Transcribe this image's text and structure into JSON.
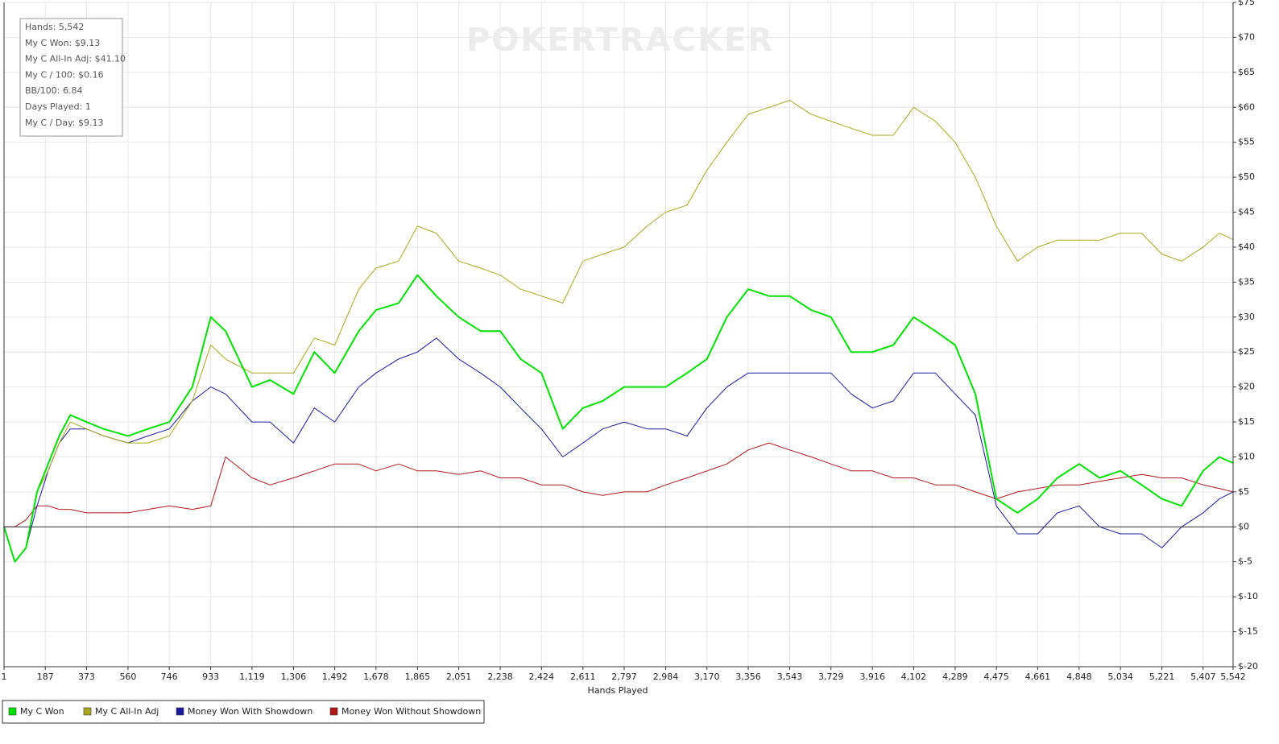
{
  "chart_data": {
    "type": "line",
    "watermark": "POKERTRACKER",
    "stats": [
      "Hands: 5,542",
      "My C Won: $9.13",
      "My C All-In Adj: $41.10",
      "My C / 100: $0.16",
      "BB/100: 6.84",
      "Days Played: 1",
      "My C / Day: $9.13"
    ],
    "x_label": "Hands Played",
    "x": [
      1,
      50,
      100,
      150,
      200,
      250,
      300,
      373,
      450,
      560,
      650,
      746,
      850,
      933,
      1000,
      1119,
      1200,
      1306,
      1400,
      1492,
      1600,
      1678,
      1780,
      1865,
      1950,
      2051,
      2150,
      2238,
      2330,
      2424,
      2520,
      2611,
      2700,
      2797,
      2900,
      2984,
      3080,
      3170,
      3260,
      3356,
      3450,
      3543,
      3640,
      3729,
      3820,
      3916,
      4010,
      4102,
      4200,
      4289,
      4380,
      4475,
      4570,
      4661,
      4750,
      4848,
      4940,
      5034,
      5130,
      5221,
      5310,
      5407,
      5480,
      5542
    ],
    "series": [
      {
        "name": "My C Won",
        "color": "#00e000",
        "width": 2,
        "values": [
          0,
          -5,
          -3,
          5,
          9,
          13,
          16,
          15,
          14,
          13,
          14,
          15,
          20,
          30,
          28,
          20,
          21,
          19,
          25,
          22,
          28,
          31,
          32,
          36,
          33,
          30,
          28,
          28,
          24,
          22,
          14,
          17,
          18,
          20,
          20,
          20,
          22,
          24,
          30,
          34,
          33,
          33,
          31,
          30,
          25,
          25,
          26,
          30,
          28,
          26,
          19,
          4,
          2,
          4,
          7,
          9,
          7,
          8,
          6,
          4,
          3,
          8,
          10,
          9.13
        ]
      },
      {
        "name": "My C All-In Adj",
        "color": "#a8a820",
        "width": 1,
        "values": [
          0,
          -5,
          -3,
          5,
          8,
          12,
          15,
          14,
          13,
          12,
          12,
          13,
          18,
          26,
          24,
          22,
          22,
          22,
          27,
          26,
          34,
          37,
          38,
          43,
          42,
          38,
          37,
          36,
          34,
          33,
          32,
          38,
          39,
          40,
          43,
          45,
          46,
          51,
          55,
          59,
          60,
          61,
          59,
          58,
          57,
          56,
          56,
          60,
          58,
          55,
          50,
          43,
          38,
          40,
          41,
          41,
          41,
          42,
          42,
          39,
          38,
          40,
          42,
          41.1
        ]
      },
      {
        "name": "Money Won With Showdown",
        "color": "#1a1aa0",
        "width": 1,
        "values": [
          0,
          -5,
          -3,
          3,
          8,
          12,
          14,
          14,
          13,
          12,
          13,
          14,
          18,
          20,
          19,
          15,
          15,
          12,
          17,
          15,
          20,
          22,
          24,
          25,
          27,
          24,
          22,
          20,
          17,
          14,
          10,
          12,
          14,
          15,
          14,
          14,
          13,
          17,
          20,
          22,
          22,
          22,
          22,
          22,
          19,
          17,
          18,
          22,
          22,
          19,
          16,
          3,
          -1,
          -1,
          2,
          3,
          0,
          -1,
          -1,
          -3,
          0,
          2,
          4,
          5
        ]
      },
      {
        "name": "Money Won Without Showdown",
        "color": "#b01818",
        "width": 1,
        "values": [
          0,
          0,
          1,
          3,
          3,
          2.5,
          2.5,
          2,
          2,
          2,
          2.5,
          3,
          2.5,
          3,
          10,
          7,
          6,
          7,
          8,
          9,
          9,
          8,
          9,
          8,
          8,
          7.5,
          8,
          7,
          7,
          6,
          6,
          5,
          4.5,
          5,
          5,
          6,
          7,
          8,
          9,
          11,
          12,
          11,
          10,
          9,
          8,
          8,
          7,
          7,
          6,
          6,
          5,
          4,
          5,
          5.5,
          6,
          6,
          6.5,
          7,
          7.5,
          7,
          7,
          6,
          5.5,
          5
        ]
      }
    ],
    "xlim": [
      1,
      5542
    ],
    "xticks": [
      {
        "value": 1,
        "label": "1"
      },
      {
        "value": 187,
        "label": "187"
      },
      {
        "value": 373,
        "label": "373"
      },
      {
        "value": 560,
        "label": "560"
      },
      {
        "value": 746,
        "label": "746"
      },
      {
        "value": 933,
        "label": "933"
      },
      {
        "value": 1119,
        "label": "1,119"
      },
      {
        "value": 1306,
        "label": "1,306"
      },
      {
        "value": 1492,
        "label": "1,492"
      },
      {
        "value": 1678,
        "label": "1,678"
      },
      {
        "value": 1865,
        "label": "1,865"
      },
      {
        "value": 2051,
        "label": "2,051"
      },
      {
        "value": 2238,
        "label": "2,238"
      },
      {
        "value": 2424,
        "label": "2,424"
      },
      {
        "value": 2611,
        "label": "2,611"
      },
      {
        "value": 2797,
        "label": "2,797"
      },
      {
        "value": 2984,
        "label": "2,984"
      },
      {
        "value": 3170,
        "label": "3,170"
      },
      {
        "value": 3356,
        "label": "3,356"
      },
      {
        "value": 3543,
        "label": "3,543"
      },
      {
        "value": 3729,
        "label": "3,729"
      },
      {
        "value": 3916,
        "label": "3,916"
      },
      {
        "value": 4102,
        "label": "4,102"
      },
      {
        "value": 4289,
        "label": "4,289"
      },
      {
        "value": 4475,
        "label": "4,475"
      },
      {
        "value": 4661,
        "label": "4,661"
      },
      {
        "value": 4848,
        "label": "4,848"
      },
      {
        "value": 5034,
        "label": "5,034"
      },
      {
        "value": 5221,
        "label": "5,221"
      },
      {
        "value": 5407,
        "label": "5,407"
      },
      {
        "value": 5542,
        "label": "5,542"
      }
    ],
    "ylim": [
      -20,
      75
    ],
    "yticks": [
      {
        "value": -20,
        "label": "$-20"
      },
      {
        "value": -15,
        "label": "$-15"
      },
      {
        "value": -10,
        "label": "$-10"
      },
      {
        "value": -5,
        "label": "$-5"
      },
      {
        "value": 0,
        "label": "$0"
      },
      {
        "value": 5,
        "label": "$5"
      },
      {
        "value": 10,
        "label": "$10"
      },
      {
        "value": 15,
        "label": "$15"
      },
      {
        "value": 20,
        "label": "$20"
      },
      {
        "value": 25,
        "label": "$25"
      },
      {
        "value": 30,
        "label": "$30"
      },
      {
        "value": 35,
        "label": "$35"
      },
      {
        "value": 40,
        "label": "$40"
      },
      {
        "value": 45,
        "label": "$45"
      },
      {
        "value": 50,
        "label": "$50"
      },
      {
        "value": 55,
        "label": "$55"
      },
      {
        "value": 60,
        "label": "$60"
      },
      {
        "value": 65,
        "label": "$65"
      },
      {
        "value": 70,
        "label": "$70"
      },
      {
        "value": 75,
        "label": "$75"
      }
    ],
    "grid": true
  }
}
